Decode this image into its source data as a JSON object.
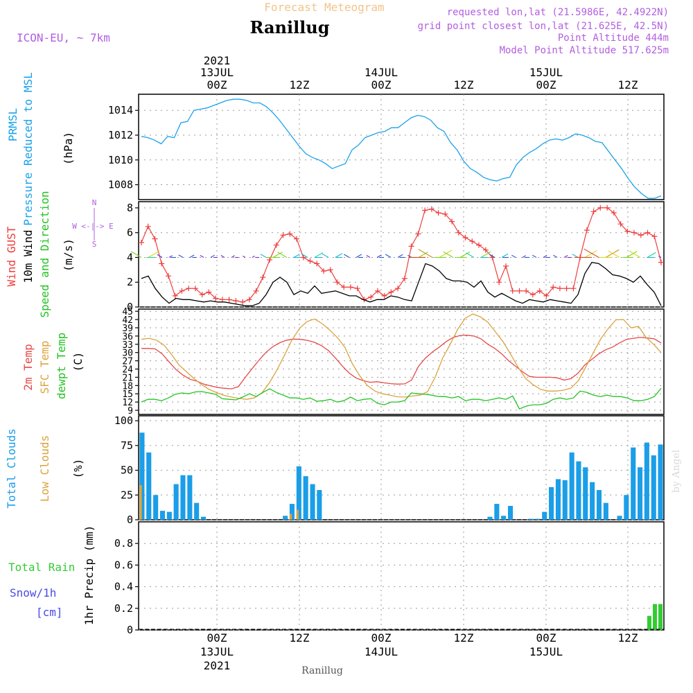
{
  "header": {
    "subtitle": "Forecast Meteogram",
    "title": "Ranillug",
    "model": "ICON-EU, ~ 7km",
    "requested": "requested lon,lat (21.5986E, 42.4922N)",
    "gridpoint": "grid point closest lon,lat (21.625E, 42.5N)",
    "point_alt": "Point Altitude 444m",
    "model_alt": "Model Point Altitude 517.625m",
    "credit": "by Angel",
    "footer": "Ranillug"
  },
  "colors": {
    "pressure": "#1ba1ea",
    "gust": "#ee3d3d",
    "wind10m": "#000000",
    "temp2m": "#e64848",
    "sfc": "#dba33c",
    "dewpt": "#22c322",
    "total_clouds": "#1b9ee8",
    "low_clouds": "#dba33c",
    "rain": "#33cc33",
    "snow": "#4a4ae6",
    "purple": "#b25ee0"
  },
  "chart_data": [
    {
      "type": "line",
      "name": "pressure",
      "label_lines": [
        "PRMSL",
        "Pressure Reduced to MSL"
      ],
      "unit": "(hPa)",
      "ylim": [
        1006.8,
        1015.3
      ],
      "yticks": [
        "1014",
        "1012",
        "1010",
        "1008"
      ],
      "ytick_values": [
        1014,
        1012,
        1010,
        1008
      ],
      "series": [
        {
          "values": [
            1011.9,
            1011.8,
            1011.6,
            1011.3,
            1011.9,
            1011.8,
            1013.0,
            1013.1,
            1014.0,
            1014.1,
            1014.2,
            1014.4,
            1014.6,
            1014.8,
            1014.9,
            1014.9,
            1014.8,
            1014.6,
            1014.6,
            1014.3,
            1013.8,
            1013.2,
            1012.5,
            1011.8,
            1011.1,
            1010.5,
            1010.2,
            1010.0,
            1009.7,
            1009.3,
            1009.5,
            1009.7,
            1010.8,
            1011.2,
            1011.8,
            1012.0,
            1012.2,
            1012.3,
            1012.6,
            1012.6,
            1013.0,
            1013.4,
            1013.6,
            1013.5,
            1013.2,
            1012.6,
            1012.3,
            1011.4,
            1010.8,
            1009.9,
            1009.3,
            1009.0,
            1008.6,
            1008.4,
            1008.3,
            1008.5,
            1008.6,
            1009.6,
            1010.2,
            1010.6,
            1010.9,
            1011.3,
            1011.6,
            1011.7,
            1011.6,
            1011.8,
            1012.1,
            1012.0,
            1011.8,
            1011.5,
            1011.4,
            1010.7,
            1010.0,
            1009.3,
            1008.5,
            1007.8,
            1007.3,
            1006.9,
            1006.9,
            1007.1
          ]
        }
      ]
    },
    {
      "type": "line",
      "name": "wind",
      "label_lines": [
        "Wind GUST",
        "10m Wind",
        "Speed and Direction"
      ],
      "unit": "(m/s)",
      "compass": [
        "N",
        "W <-|-> E",
        "S"
      ],
      "ylim": [
        0,
        8.5
      ],
      "yticks": [
        "8",
        "6",
        "4",
        "2",
        "0"
      ],
      "ytick_values": [
        8,
        6,
        4,
        2,
        0
      ],
      "series": [
        {
          "name": "Wind GUST",
          "values": [
            5.2,
            6.5,
            5.5,
            3.5,
            2.5,
            0.9,
            1.3,
            1.5,
            1.5,
            1.0,
            1.2,
            0.7,
            0.6,
            0.6,
            0.5,
            0.4,
            0.6,
            1.3,
            2.4,
            3.8,
            5.0,
            5.8,
            5.9,
            5.5,
            4.0,
            3.7,
            3.5,
            2.9,
            3.0,
            2.0,
            1.6,
            1.6,
            1.5,
            0.6,
            0.8,
            1.3,
            0.9,
            1.2,
            1.5,
            2.3,
            4.9,
            5.9,
            7.8,
            7.9,
            7.6,
            7.5,
            6.9,
            6.0,
            5.6,
            5.3,
            5.0,
            4.6,
            4.0,
            2.0,
            3.3,
            1.3,
            1.3,
            1.3,
            1.0,
            1.3,
            0.9,
            1.6,
            1.5,
            1.5,
            1.5,
            4.0,
            6.2,
            7.7,
            8.0,
            8.0,
            7.6,
            6.7,
            6.1,
            6.0,
            5.8,
            6.0,
            5.7,
            3.6
          ]
        },
        {
          "name": "10m Wind",
          "values": [
            2.3,
            2.5,
            1.5,
            0.8,
            0.3,
            0.7,
            0.6,
            0.6,
            0.5,
            0.4,
            0.5,
            0.4,
            0.4,
            0.3,
            0.2,
            0.1,
            0.1,
            0.3,
            1.0,
            2.0,
            2.4,
            2.0,
            1.0,
            1.3,
            1.1,
            1.7,
            1.1,
            1.2,
            1.3,
            1.1,
            0.9,
            0.9,
            0.6,
            0.4,
            0.6,
            0.6,
            0.9,
            0.8,
            0.6,
            0.5,
            2.0,
            3.5,
            3.3,
            2.9,
            2.3,
            2.1,
            2.1,
            2.0,
            1.6,
            2.1,
            1.2,
            0.8,
            1.1,
            0.8,
            0.5,
            0.3,
            0.6,
            0.5,
            0.4,
            0.6,
            0.5,
            0.4,
            0.3,
            1.0,
            2.7,
            3.6,
            3.5,
            3.1,
            2.6,
            2.5,
            2.3,
            2.0,
            2.5,
            1.8,
            1.2,
            0.1
          ]
        }
      ]
    },
    {
      "type": "line",
      "name": "temperature",
      "label_lines": [
        "2m Temp",
        "SFC Temp",
        "dewpt Temp"
      ],
      "unit": "(C)",
      "ylim": [
        7.5,
        45.8
      ],
      "yticks": [
        "45",
        "42",
        "39",
        "36",
        "33",
        "30",
        "27",
        "24",
        "21",
        "18",
        "15",
        "12",
        "9"
      ],
      "ytick_values": [
        45,
        42,
        39,
        36,
        33,
        30,
        27,
        24,
        21,
        18,
        15,
        12,
        9
      ],
      "series": [
        {
          "name": "2m Temp",
          "values": [
            31.5,
            31.5,
            31.3,
            29.5,
            26.6,
            23.8,
            21.8,
            20.3,
            19.6,
            18.5,
            17.9,
            17.3,
            17.0,
            16.8,
            17.6,
            21.0,
            24.2,
            27.3,
            30.1,
            32.2,
            33.6,
            34.5,
            34.9,
            34.8,
            34.4,
            33.7,
            32.5,
            30.7,
            28.0,
            25.1,
            22.5,
            20.7,
            19.8,
            19.2,
            19.4,
            19.0,
            18.7,
            18.5,
            18.6,
            20.0,
            25.0,
            28.0,
            30.2,
            32.0,
            34.0,
            35.5,
            36.2,
            36.3,
            36.0,
            35.0,
            33.0,
            31.5,
            29.5,
            27.0,
            25.0,
            23.0,
            21.3,
            21.0,
            21.0,
            21.0,
            20.8,
            20.0,
            20.5,
            22.5,
            25.5,
            27.5,
            29.5,
            31.0,
            32.0,
            33.5,
            34.8,
            35.2,
            35.5,
            35.3,
            35.0,
            33.5
          ]
        },
        {
          "name": "SFC Temp",
          "values": [
            34.8,
            35.2,
            34.5,
            32.7,
            29.3,
            25.5,
            23.0,
            20.5,
            18.3,
            16.6,
            15.4,
            14.4,
            13.8,
            13.3,
            13.0,
            13.5,
            15.3,
            19.0,
            23.7,
            29.0,
            34.6,
            38.8,
            41.3,
            42.2,
            40.5,
            38.2,
            35.5,
            32.0,
            26.0,
            21.5,
            18.0,
            16.0,
            15.0,
            14.5,
            13.9,
            13.8,
            14.2,
            14.5,
            15.8,
            21.0,
            28.0,
            33.0,
            38.5,
            42.5,
            44.0,
            43.0,
            41.0,
            37.5,
            34.0,
            29.5,
            24.7,
            20.6,
            18.3,
            16.6,
            16.0,
            16.0,
            16.3,
            17.0,
            19.7,
            24.7,
            30.0,
            35.0,
            38.8,
            41.9,
            42.0,
            39.0,
            39.5,
            35.5,
            33.0,
            30.0
          ]
        },
        {
          "name": "dewpt Temp",
          "values": [
            12.0,
            13.0,
            13.0,
            12.5,
            13.5,
            14.8,
            15.3,
            15.0,
            15.7,
            15.8,
            15.3,
            14.8,
            13.2,
            13.0,
            12.8,
            13.8,
            15.0,
            14.0,
            15.5,
            16.8,
            15.5,
            14.5,
            13.5,
            13.5,
            13.0,
            13.5,
            12.3,
            12.5,
            13.0,
            12.0,
            12.5,
            13.8,
            12.5,
            13.0,
            13.2,
            11.5,
            11.0,
            12.0,
            12.0,
            12.5,
            15.3,
            15.0,
            14.8,
            14.5,
            14.0,
            14.0,
            13.5,
            14.0,
            12.5,
            13.0,
            13.0,
            12.5,
            13.0,
            13.5,
            13.0,
            14.2,
            9.5,
            10.5,
            11.0,
            11.0,
            11.5,
            13.0,
            13.5,
            13.0,
            13.5,
            16.0,
            15.5,
            14.5,
            14.0,
            14.5,
            14.0,
            14.0,
            13.5,
            12.5,
            12.5,
            13.0,
            14.0,
            17.0
          ]
        }
      ]
    },
    {
      "type": "bar",
      "name": "clouds",
      "label_lines": [
        "Total Clouds",
        "Low Clouds"
      ],
      "unit": "(%)",
      "ylim": [
        0,
        105
      ],
      "yticks": [
        "100",
        "75",
        "50",
        "25",
        "0"
      ],
      "ytick_values": [
        100,
        75,
        50,
        25,
        0
      ],
      "series": [
        {
          "name": "Total Clouds",
          "values": [
            88,
            68,
            25,
            9,
            8,
            36,
            45,
            45,
            17,
            3,
            0,
            0,
            0,
            0,
            0,
            0,
            0,
            0,
            0,
            0,
            0,
            4,
            16,
            54,
            44,
            36,
            30,
            0,
            0,
            0,
            0,
            0,
            0,
            0,
            0,
            0,
            0,
            0,
            0,
            0,
            0,
            0,
            0,
            0,
            0,
            0,
            0,
            0,
            0,
            0,
            0,
            3,
            16,
            4,
            14,
            0,
            0,
            1,
            1,
            8,
            33,
            41,
            40,
            68,
            59,
            53,
            38,
            30,
            17,
            0,
            4,
            25,
            73,
            53,
            78,
            65,
            76
          ]
        },
        {
          "name": "Low Clouds",
          "values": [
            35,
            0,
            0,
            0,
            0,
            0,
            0,
            0,
            0,
            0,
            0,
            0,
            0,
            0,
            0,
            0,
            0,
            0,
            0,
            0,
            0,
            0,
            6,
            10,
            0,
            0,
            0,
            0,
            0,
            0,
            0,
            0,
            0,
            0,
            0,
            0,
            0,
            0,
            0,
            0,
            0,
            0,
            0,
            0,
            0,
            0,
            0,
            0,
            0,
            0,
            0,
            0,
            0,
            0,
            0,
            0,
            0,
            0,
            0,
            0,
            0,
            0,
            0,
            0,
            0,
            0,
            0,
            0,
            0,
            0,
            0,
            0,
            0,
            0,
            0,
            0,
            0
          ]
        }
      ]
    },
    {
      "type": "bar",
      "name": "precip",
      "label_lines": [
        "Total  Rain",
        "Snow/1h",
        "[cm]"
      ],
      "unit": "1hr Precip (mm)",
      "ylim": [
        0,
        1.0
      ],
      "yticks": [
        "0.8",
        "0.6",
        "0.4",
        "0.2",
        "0"
      ],
      "ytick_values": [
        0.8,
        0.6,
        0.4,
        0.2,
        0
      ],
      "series": [
        {
          "name": "Total Rain",
          "values": [
            0.13,
            0.24,
            0.24
          ]
        }
      ]
    }
  ],
  "time_axis": {
    "top_year": "2021",
    "labels": [
      {
        "hour": "00Z",
        "date": "13JUL",
        "year": "2021"
      },
      {
        "hour": "12Z",
        "date": "",
        "year": ""
      },
      {
        "hour": "00Z",
        "date": "14JUL",
        "year": ""
      },
      {
        "hour": "12Z",
        "date": "",
        "year": ""
      },
      {
        "hour": "00Z",
        "date": "15JUL",
        "year": ""
      },
      {
        "hour": "12Z",
        "date": "",
        "year": ""
      }
    ]
  }
}
